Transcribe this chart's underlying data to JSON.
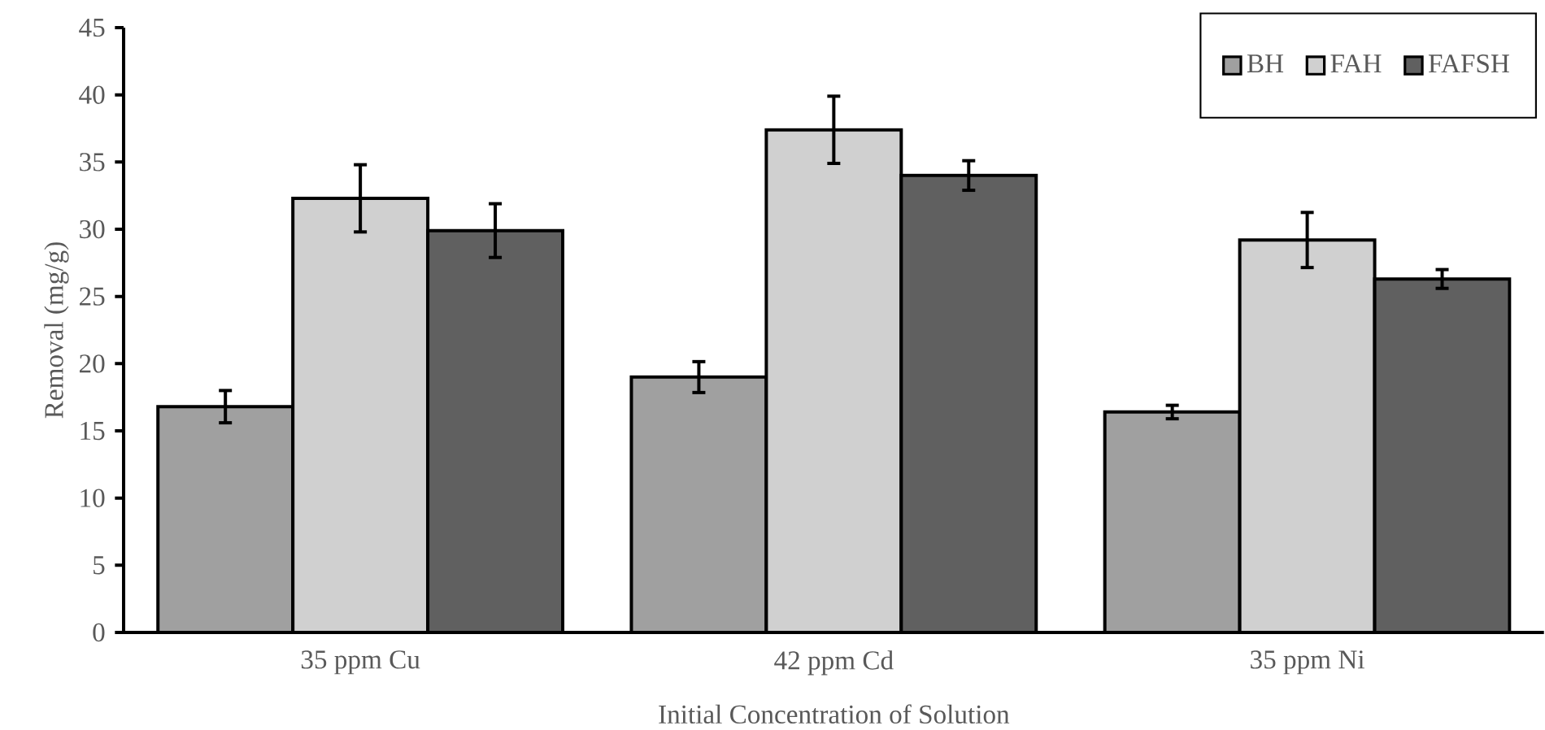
{
  "chart_data": {
    "type": "bar",
    "xlabel": "Initial Concentration of Solution",
    "ylabel": "Removal (mg/g)",
    "categories": [
      "35 ppm Cu",
      "42 ppm Cd",
      "35 ppm Ni"
    ],
    "series": [
      {
        "name": "BH",
        "color": "#a0a0a0",
        "values": [
          16.8,
          19.0,
          16.4
        ],
        "errors": [
          1.2,
          1.15,
          0.5
        ]
      },
      {
        "name": "FAH",
        "color": "#d0d0d0",
        "values": [
          32.3,
          37.4,
          29.2
        ],
        "errors": [
          2.5,
          2.5,
          2.05
        ]
      },
      {
        "name": "FAFSH",
        "color": "#606060",
        "values": [
          29.9,
          34.0,
          26.3
        ],
        "errors": [
          2.0,
          1.1,
          0.7
        ]
      }
    ],
    "ylim": [
      0,
      45
    ],
    "yticks": [
      0,
      5,
      10,
      15,
      20,
      25,
      30,
      35,
      40,
      45
    ],
    "grid": false,
    "legend": "top right"
  }
}
